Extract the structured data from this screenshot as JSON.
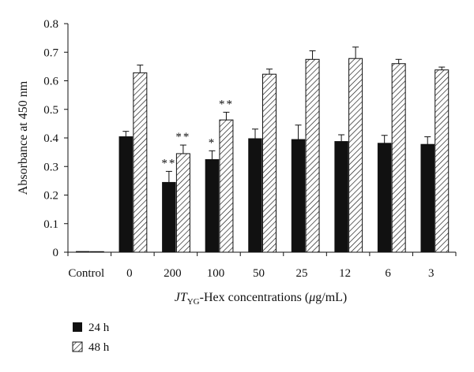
{
  "chart_data": {
    "type": "bar",
    "categories": [
      "Control",
      "0",
      "200",
      "100",
      "50",
      "25",
      "12",
      "6",
      "3"
    ],
    "series": [
      {
        "name": "24 h",
        "values": [
          0.003,
          0.405,
          0.245,
          0.325,
          0.398,
          0.395,
          0.388,
          0.382,
          0.378
        ],
        "errors": [
          0.0,
          0.018,
          0.038,
          0.03,
          0.033,
          0.05,
          0.023,
          0.027,
          0.026
        ],
        "significance": [
          "",
          "",
          "**",
          "*",
          "",
          "",
          "",
          "",
          ""
        ],
        "color": "#111111",
        "fill": "solid"
      },
      {
        "name": "48 h",
        "values": [
          0.002,
          0.628,
          0.345,
          0.463,
          0.623,
          0.675,
          0.678,
          0.66,
          0.638
        ],
        "errors": [
          0.0,
          0.027,
          0.03,
          0.027,
          0.018,
          0.03,
          0.04,
          0.015,
          0.01
        ],
        "significance": [
          "",
          "",
          "**",
          "**",
          "",
          "",
          "",
          "",
          ""
        ],
        "color": "#111111",
        "fill": "hatched"
      }
    ],
    "ylabel": "Absorbance at 450 nm",
    "xlabel_parts": {
      "italic_main": "JT",
      "subscript": "YG",
      "rest": "-Hex concentrations (",
      "mu": "μ",
      "unit_rest": "g/mL)"
    },
    "ylim": [
      0,
      0.8
    ],
    "yticks": [
      "0",
      "0.1",
      "0.2",
      "0.3",
      "0.4",
      "0.5",
      "0.6",
      "0.7",
      "0.8"
    ],
    "grid": false,
    "legend_position": "bottom-left"
  }
}
